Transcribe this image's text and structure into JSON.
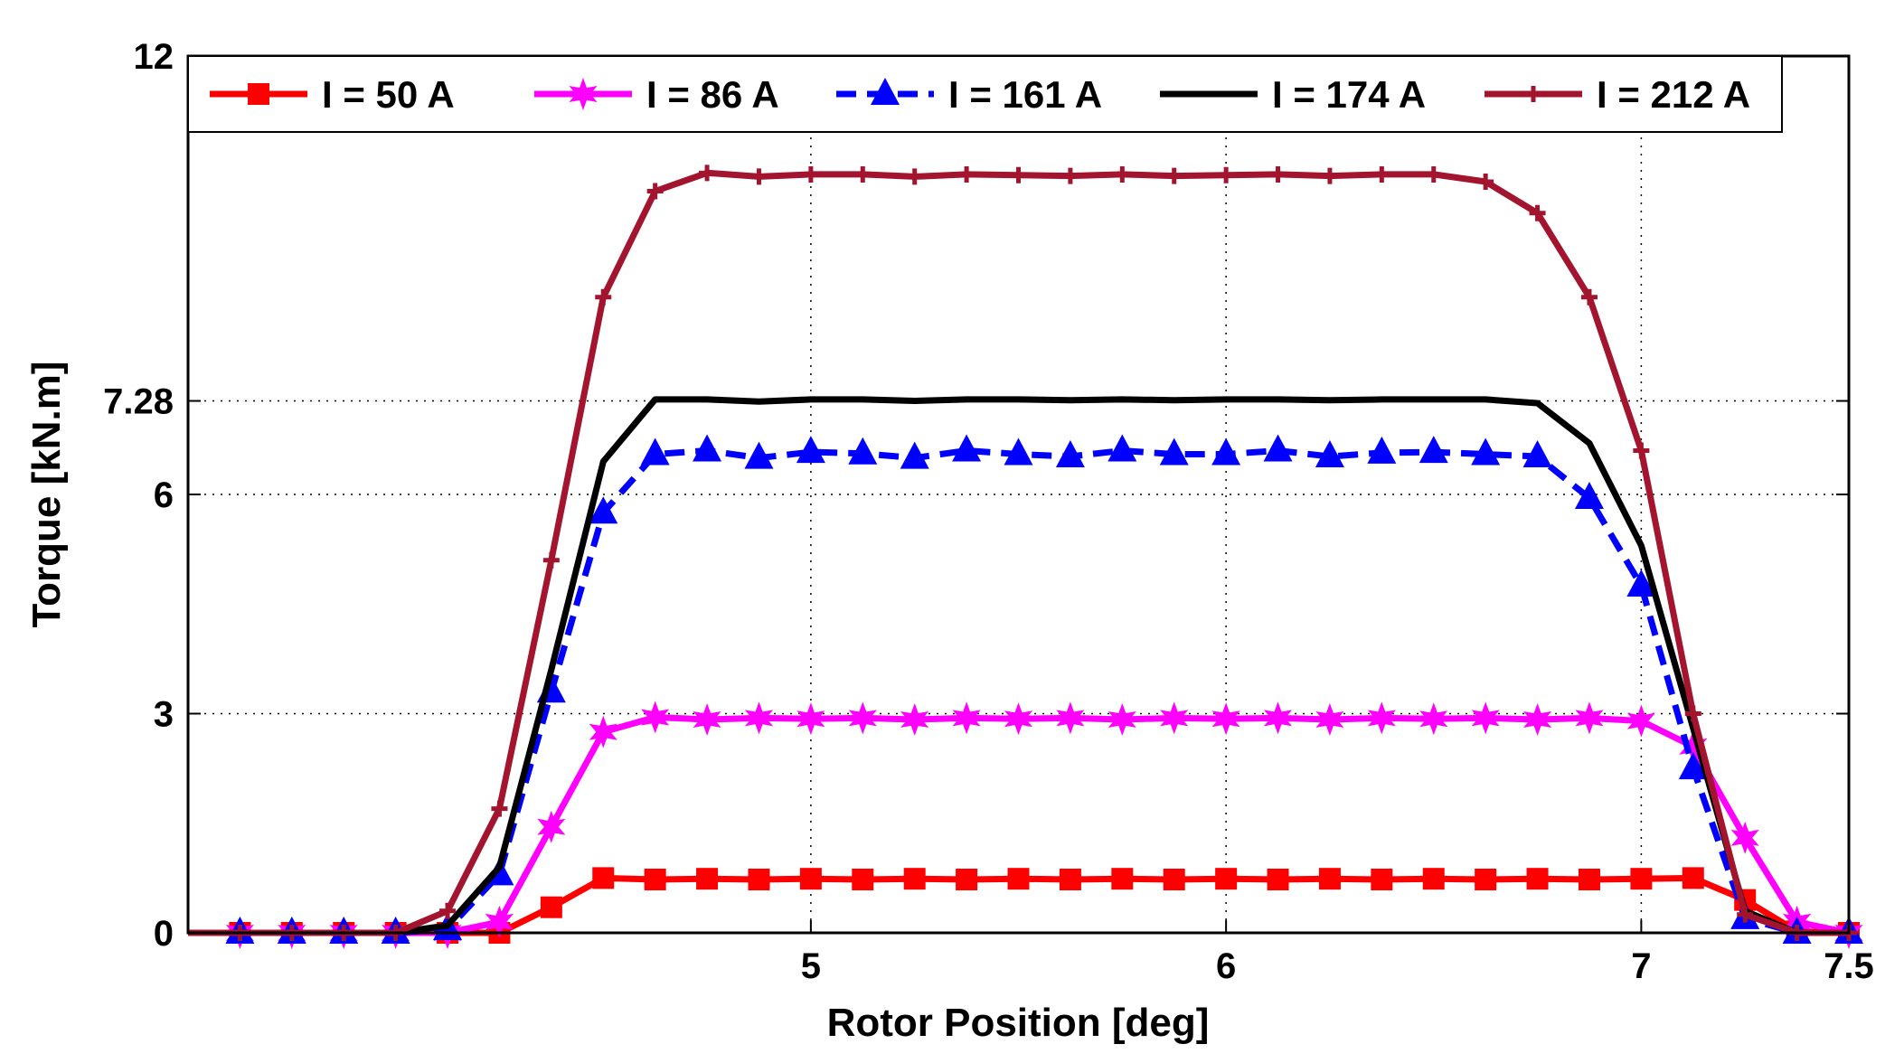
{
  "chart_data": {
    "type": "line",
    "title": "",
    "xlabel": "Rotor Position  [deg]",
    "ylabel": "Torque [kN.m]",
    "xlim": [
      3.5,
      7.5
    ],
    "ylim": [
      0,
      12
    ],
    "xticks": [
      5,
      6,
      7,
      7.5
    ],
    "xtick_labels": [
      "5",
      "6",
      "7",
      "7.5"
    ],
    "yticks": [
      0,
      3,
      6,
      7.28,
      12
    ],
    "ytick_labels": [
      "0",
      "3",
      "6",
      "7.28",
      "12"
    ],
    "grid": "dotted at ticks",
    "legend_position": "top",
    "x": [
      3.5,
      3.625,
      3.75,
      3.875,
      4.0,
      4.125,
      4.25,
      4.375,
      4.5,
      4.625,
      4.75,
      4.875,
      5.0,
      5.125,
      5.25,
      5.375,
      5.5,
      5.625,
      5.75,
      5.875,
      6.0,
      6.125,
      6.25,
      6.375,
      6.5,
      6.625,
      6.75,
      6.875,
      7.0,
      7.125,
      7.25,
      7.375,
      7.5
    ],
    "series": [
      {
        "name": "I = 50 A",
        "color": "#ff0000",
        "dash": "solid",
        "marker": "square",
        "values": [
          0,
          0,
          0,
          0,
          0,
          0,
          0,
          0.35,
          0.75,
          0.73,
          0.74,
          0.73,
          0.74,
          0.73,
          0.74,
          0.73,
          0.74,
          0.73,
          0.74,
          0.73,
          0.74,
          0.73,
          0.74,
          0.73,
          0.74,
          0.73,
          0.74,
          0.73,
          0.74,
          0.75,
          0.45,
          0.02,
          0
        ]
      },
      {
        "name": "I = 86 A",
        "color": "#ff00ff",
        "dash": "solid",
        "marker": "star",
        "values": [
          0,
          0,
          0,
          0,
          0,
          0,
          0.15,
          1.45,
          2.75,
          2.95,
          2.92,
          2.94,
          2.93,
          2.94,
          2.92,
          2.94,
          2.93,
          2.94,
          2.92,
          2.94,
          2.93,
          2.94,
          2.92,
          2.94,
          2.93,
          2.94,
          2.92,
          2.94,
          2.9,
          2.55,
          1.3,
          0.15,
          0
        ]
      },
      {
        "name": "I = 161 A",
        "color": "#0000ff",
        "dash": "dashed",
        "marker": "triangle",
        "values": [
          0,
          0,
          0,
          0,
          0,
          0.05,
          0.8,
          3.3,
          5.75,
          6.55,
          6.6,
          6.5,
          6.58,
          6.56,
          6.5,
          6.6,
          6.55,
          6.52,
          6.6,
          6.55,
          6.55,
          6.6,
          6.52,
          6.57,
          6.58,
          6.55,
          6.52,
          5.95,
          4.75,
          2.25,
          0.2,
          0,
          0
        ]
      },
      {
        "name": "I = 174 A",
        "color": "#000000",
        "dash": "solid",
        "marker": "none",
        "values": [
          0,
          0,
          0,
          0,
          0,
          0.1,
          0.9,
          3.6,
          6.45,
          7.3,
          7.3,
          7.27,
          7.3,
          7.3,
          7.28,
          7.3,
          7.3,
          7.29,
          7.3,
          7.29,
          7.3,
          7.3,
          7.29,
          7.3,
          7.3,
          7.3,
          7.25,
          6.7,
          5.3,
          2.8,
          0.3,
          0,
          0
        ]
      },
      {
        "name": "I = 212 A",
        "color": "#a3142e",
        "dash": "solid",
        "marker": "plus",
        "values": [
          0,
          0,
          0,
          0,
          0,
          0.3,
          1.7,
          5.1,
          8.7,
          10.15,
          10.4,
          10.35,
          10.38,
          10.38,
          10.35,
          10.38,
          10.37,
          10.36,
          10.38,
          10.36,
          10.37,
          10.38,
          10.36,
          10.38,
          10.38,
          10.28,
          9.85,
          8.7,
          6.6,
          3.0,
          0.25,
          0,
          0
        ]
      }
    ]
  }
}
